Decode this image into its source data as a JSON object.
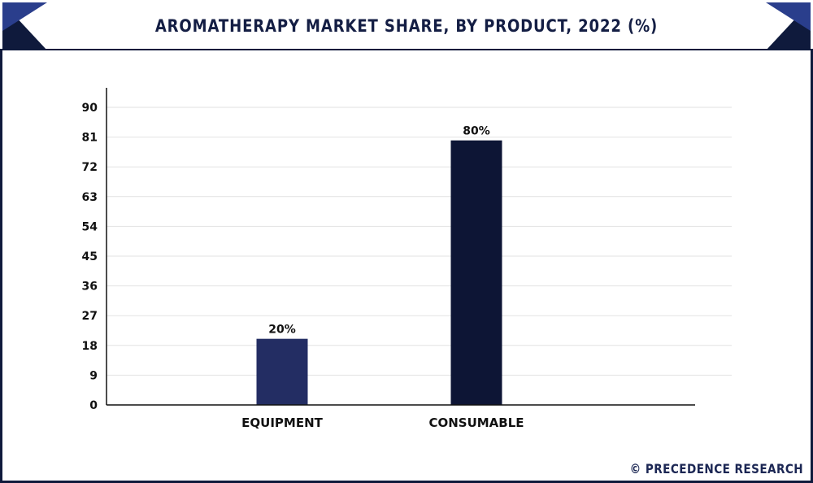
{
  "title": "AROMATHERAPY MARKET SHARE, BY PRODUCT, 2022 (%)",
  "footer": "© PRECEDENCE RESEARCH",
  "colors": {
    "frame": "#0f1a3c",
    "corner_dark": "#0f1a3c",
    "corner_light": "#2a3e8c",
    "grid": "#e2e2e2",
    "axis": "#111111",
    "text": "#111111"
  },
  "chart_data": {
    "type": "bar",
    "categories": [
      "EQUIPMENT",
      "CONSUMABLE"
    ],
    "values": [
      20,
      80
    ],
    "value_labels": [
      "20%",
      "80%"
    ],
    "bar_colors": [
      "#232d63",
      "#0d1535"
    ],
    "title": "",
    "xlabel": "",
    "ylabel": "",
    "ylim": [
      0,
      90
    ],
    "yticks": [
      0,
      9,
      18,
      27,
      36,
      45,
      54,
      63,
      72,
      81,
      90
    ],
    "grid": true,
    "legend": "none"
  }
}
